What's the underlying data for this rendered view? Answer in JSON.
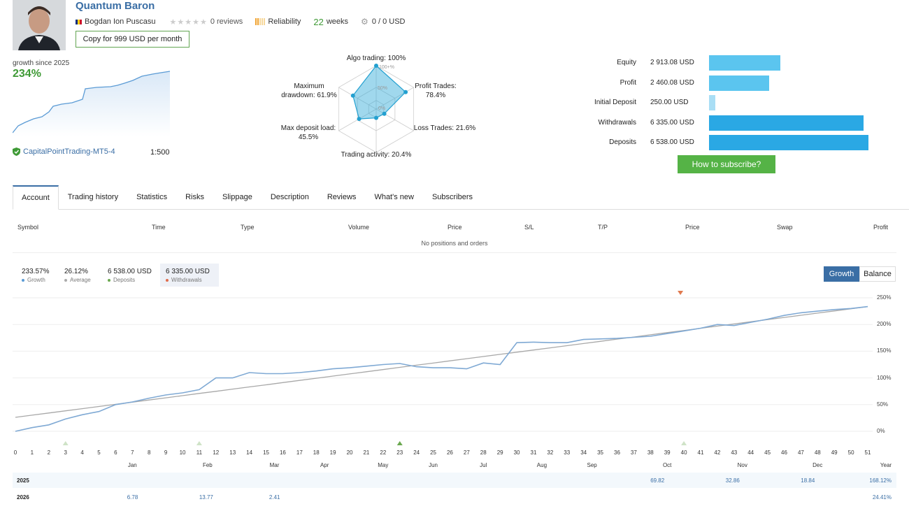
{
  "profile": {
    "title": "Quantum Baron",
    "author": "Bogdan Ion Puscasu",
    "reviews_label": "0 reviews",
    "reliability_label": "Reliability",
    "weeks_num": "22",
    "weeks_label": "weeks",
    "subscribers_funds": "0 / 0 USD",
    "copy_button": "Copy for 999 USD per month",
    "growth_since": "growth since 2025",
    "growth_value": "234%",
    "broker": "CapitalPointTrading-MT5-4",
    "leverage": "1:500"
  },
  "radar": {
    "algo": "Algo trading: 100%",
    "profit_trades_1": "Profit Trades:",
    "profit_trades_2": "78.4%",
    "loss_trades": "Loss Trades: 21.6%",
    "activity": "Trading activity: 20.4%",
    "deposit_load_1": "Max deposit load:",
    "deposit_load_2": "45.5%",
    "drawdown_1": "Maximum",
    "drawdown_2": "drawdown: 61.9%",
    "ring_100": "100+%",
    "ring_50": "50%",
    "ring_0": "0%",
    "values": {
      "algo": 1.0,
      "profit": 0.784,
      "loss": 0.216,
      "activity": 0.204,
      "load": 0.455,
      "drawdown": 0.619
    }
  },
  "stats": [
    {
      "label": "Equity",
      "value": "2 913.08 USD",
      "amount": 2913.08,
      "color": "#5bc5ef"
    },
    {
      "label": "Profit",
      "value": "2 460.08 USD",
      "amount": 2460.08,
      "color": "#5bc5ef"
    },
    {
      "label": "Initial Deposit",
      "value": "250.00 USD",
      "amount": 250.0,
      "color": "#a9def5"
    },
    {
      "label": "Withdrawals",
      "value": "6 335.00 USD",
      "amount": 6335.0,
      "color": "#2aa8e4"
    },
    {
      "label": "Deposits",
      "value": "6 538.00 USD",
      "amount": 6538.0,
      "color": "#2aa8e4"
    }
  ],
  "subscribe_button": "How to subscribe?",
  "tabs": [
    "Account",
    "Trading history",
    "Statistics",
    "Risks",
    "Slippage",
    "Description",
    "Reviews",
    "What's new",
    "Subscribers"
  ],
  "table": {
    "headers": [
      "Symbol",
      "Time",
      "Type",
      "Volume",
      "Price",
      "S/L",
      "T/P",
      "Price",
      "Swap",
      "Profit"
    ],
    "empty": "No positions and orders"
  },
  "legend": [
    {
      "value": "233.57%",
      "label": "Growth",
      "color": "#5b9bd5"
    },
    {
      "value": "26.12%",
      "label": "Average",
      "color": "#aaaaaa"
    },
    {
      "value": "6 538.00 USD",
      "label": "Deposits",
      "color": "#6aa84f"
    },
    {
      "value": "6 335.00 USD",
      "label": "Withdrawals",
      "color": "#e06c4c"
    }
  ],
  "toggle": {
    "growth": "Growth",
    "balance": "Balance"
  },
  "chart_data": {
    "type": "line",
    "x": [
      0,
      1,
      2,
      3,
      4,
      5,
      6,
      7,
      8,
      9,
      10,
      11,
      12,
      13,
      14,
      15,
      16,
      17,
      18,
      19,
      20,
      21,
      22,
      23,
      24,
      25,
      26,
      27,
      28,
      29,
      30,
      31,
      32,
      33,
      34,
      35,
      36,
      37,
      38,
      39,
      40,
      41,
      42,
      43,
      44,
      45,
      46,
      47,
      48,
      49,
      50,
      51
    ],
    "series": [
      {
        "name": "Growth",
        "values": [
          0,
          7,
          12,
          23,
          31,
          37,
          50,
          55,
          62,
          68,
          72,
          78,
          100,
          100,
          110,
          108,
          108,
          110,
          113,
          117,
          119,
          122,
          125,
          127,
          121,
          119,
          119,
          117,
          128,
          125,
          166,
          167,
          166,
          166,
          172,
          173,
          174,
          176,
          178,
          183,
          188,
          193,
          200,
          198,
          204,
          210,
          217,
          222,
          225,
          228,
          230,
          233.57
        ]
      },
      {
        "name": "Average",
        "values": [
          26.12,
          30.2,
          34.3,
          38.3,
          42.4,
          46.5,
          50.5,
          54.6,
          58.7,
          62.7,
          66.8,
          70.9,
          74.9,
          79.0,
          83.1,
          87.1,
          91.2,
          95.3,
          99.3,
          103.4,
          107.5,
          111.5,
          115.6,
          119.7,
          123.8,
          127.8,
          131.9,
          136.0,
          140.0,
          144.1,
          148.2,
          152.2,
          156.3,
          160.4,
          164.4,
          168.5,
          172.6,
          176.6,
          180.7,
          184.8,
          188.8,
          192.9,
          197.0,
          201.0,
          205.1,
          209.2,
          213.2,
          217.3,
          221.4,
          225.4,
          229.5,
          233.57
        ]
      }
    ],
    "yticks": [
      "0%",
      "50%",
      "100%",
      "150%",
      "200%",
      "250%"
    ],
    "ylim": [
      -25,
      260
    ],
    "xlim": [
      0,
      51
    ],
    "months": [
      "Jan",
      "Feb",
      "Mar",
      "Apr",
      "May",
      "Jun",
      "Jul",
      "Aug",
      "Sep",
      "Oct",
      "Nov",
      "Dec"
    ],
    "month_x": [
      7,
      11.5,
      15.5,
      18.5,
      22,
      25,
      28,
      31.5,
      34.5,
      39,
      43.5,
      48
    ],
    "year_label": "Year",
    "deposit_markers_x": [
      3,
      11,
      23,
      40
    ],
    "withdrawal_markers_x": [
      40
    ]
  },
  "years": [
    {
      "year": "2025",
      "cells": [
        {
          "col": 38.5,
          "v": "69.82"
        },
        {
          "col": 43,
          "v": "32.86"
        },
        {
          "col": 47.5,
          "v": "18.84"
        }
      ],
      "total": "168.12%"
    },
    {
      "year": "2026",
      "cells": [
        {
          "col": 7,
          "v": "6.78"
        },
        {
          "col": 11.5,
          "v": "13.77"
        },
        {
          "col": 15.5,
          "v": "2.41"
        }
      ],
      "total": "24.41%"
    }
  ]
}
